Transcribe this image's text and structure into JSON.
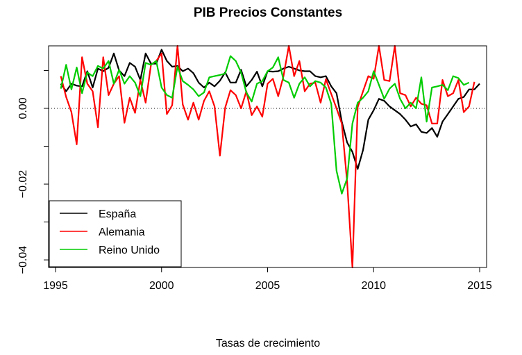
{
  "chart_data": {
    "type": "line",
    "title": "PIB Precios Constantes",
    "xlabel": "Tasas de crecimiento",
    "ylabel": "",
    "xlim": [
      1995,
      2015
    ],
    "ylim": [
      -0.042,
      0.0165
    ],
    "x_ticks": [
      {
        "value": 1995,
        "label": "1995"
      },
      {
        "value": 2000,
        "label": "2000"
      },
      {
        "value": 2005,
        "label": "2005"
      },
      {
        "value": 2010,
        "label": "2010"
      },
      {
        "value": 2015,
        "label": "2015"
      }
    ],
    "y_ticks": [
      {
        "value": -0.04,
        "label": "−0.04"
      },
      {
        "value": -0.02,
        "label": "−0.02"
      },
      {
        "value": 0.0,
        "label": "0.00"
      }
    ],
    "y_minor_ticks": [
      -0.03,
      -0.01,
      0.01
    ],
    "reference_line": {
      "y": 0,
      "style": "dotted"
    },
    "grid": false,
    "legend": {
      "placement": "bottom-left"
    },
    "x_start": 1995.25,
    "x_step": 0.25,
    "series": [
      {
        "name": "España",
        "color": "#000000",
        "values": [
          0.0065,
          0.0045,
          0.0065,
          0.006,
          0.0058,
          0.0098,
          0.0055,
          0.0105,
          0.0098,
          0.0107,
          0.0145,
          0.01,
          0.0085,
          0.012,
          0.011,
          0.0075,
          0.0145,
          0.0118,
          0.0118,
          0.0155,
          0.0125,
          0.011,
          0.0112,
          0.0098,
          0.0105,
          0.0093,
          0.0068,
          0.0055,
          0.0068,
          0.0058,
          0.0073,
          0.0095,
          0.0068,
          0.0068,
          0.0102,
          0.0058,
          0.0075,
          0.0097,
          0.0058,
          0.0098,
          0.0097,
          0.0098,
          0.0105,
          0.011,
          0.0105,
          0.01,
          0.0098,
          0.0098,
          0.0085,
          0.0082,
          0.0085,
          0.0058,
          0.004,
          -0.0035,
          -0.009,
          -0.0115,
          -0.016,
          -0.011,
          -0.003,
          -0.0005,
          0.0025,
          0.002,
          0.0005,
          -0.0005,
          -0.0015,
          -0.003,
          -0.0048,
          -0.0042,
          -0.0062,
          -0.0065,
          -0.0052,
          -0.0075,
          -0.0035,
          -0.0015,
          0.0005,
          0.0025,
          0.003,
          0.005,
          0.005,
          0.0065
        ]
      },
      {
        "name": "Alemania",
        "color": "#ff0000",
        "values": [
          0.0085,
          0.003,
          -0.001,
          -0.0095,
          0.0135,
          0.0065,
          0.0045,
          -0.005,
          0.0135,
          0.0035,
          0.0065,
          0.0085,
          -0.0038,
          0.0028,
          -0.0012,
          0.0075,
          0.0015,
          0.0115,
          0.0125,
          0.0145,
          -0.0015,
          0.0008,
          0.0165,
          0.001,
          -0.003,
          0.0015,
          -0.003,
          0.002,
          0.0045,
          0.0005,
          -0.0125,
          0.0002,
          0.0048,
          0.0035,
          0.0,
          0.0045,
          -0.0018,
          0.0005,
          -0.0022,
          0.0065,
          0.0078,
          0.0032,
          0.0085,
          0.0165,
          0.0085,
          0.0125,
          0.0045,
          0.0065,
          0.0068,
          0.0015,
          0.0077,
          0.0038,
          0.0,
          -0.004,
          -0.0195,
          -0.042,
          0.0003,
          0.0045,
          0.0085,
          0.0078,
          0.0165,
          0.0075,
          0.0072,
          0.0165,
          0.004,
          0.0035,
          0.0005,
          0.0028,
          0.0012,
          0.0008,
          -0.004,
          -0.004,
          0.0075,
          0.0032,
          0.004,
          0.0075,
          -0.001,
          0.0005,
          0.007
        ]
      },
      {
        "name": "Reino Unido",
        "color": "#00cc00",
        "values": [
          0.0052,
          0.0115,
          0.005,
          0.0108,
          0.004,
          0.0095,
          0.0085,
          0.0112,
          0.0105,
          0.0125,
          0.0065,
          0.0102,
          0.0065,
          0.0085,
          0.0068,
          0.0032,
          0.012,
          0.0115,
          0.0125,
          0.0055,
          0.0035,
          0.0028,
          0.011,
          0.0072,
          0.0062,
          0.005,
          0.0032,
          0.0042,
          0.0082,
          0.0085,
          0.0088,
          0.0092,
          0.0138,
          0.0125,
          0.0095,
          0.0042,
          0.0018,
          0.0065,
          0.0072,
          0.0098,
          0.0108,
          0.0135,
          0.0075,
          0.0068,
          0.0028,
          0.0065,
          0.0082,
          0.0058,
          0.0072,
          0.0068,
          0.0055,
          0.0012,
          -0.0165,
          -0.0225,
          -0.0185,
          -0.004,
          0.0015,
          0.0028,
          0.0045,
          0.0098,
          0.0062,
          0.0025,
          0.0052,
          0.0065,
          0.0025,
          0.0,
          0.0015,
          0.0,
          0.0082,
          -0.0035,
          0.0055,
          0.0058,
          0.0062,
          0.0048,
          0.0085,
          0.008,
          0.0062,
          0.0068
        ]
      }
    ]
  }
}
